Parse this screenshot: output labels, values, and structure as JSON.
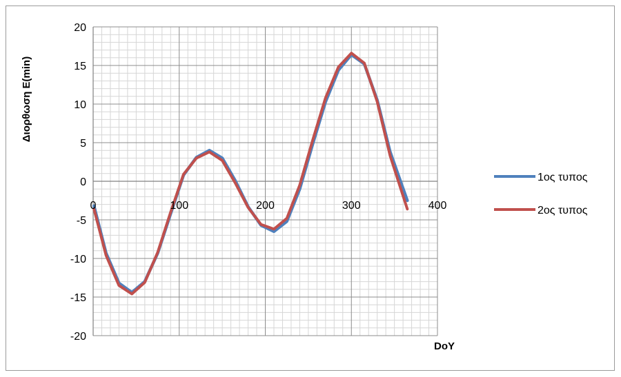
{
  "chart_data": {
    "type": "line",
    "title": "",
    "xlabel": "DoY",
    "ylabel": "Διορθωση Ε(min)",
    "xlim": [
      0,
      400
    ],
    "ylim": [
      -20,
      20
    ],
    "xticks": [
      0,
      100,
      200,
      300,
      400
    ],
    "yticks": [
      20,
      15,
      10,
      5,
      0,
      -5,
      -10,
      -15,
      -20
    ],
    "grid": true,
    "legend": "right",
    "series": [
      {
        "name": "1ος τυπος",
        "color": "#4f81bd",
        "x": [
          1,
          15,
          30,
          45,
          60,
          75,
          90,
          105,
          120,
          135,
          150,
          165,
          180,
          195,
          210,
          225,
          240,
          255,
          270,
          285,
          300,
          315,
          330,
          345,
          365
        ],
        "values": [
          -3.2,
          -9.3,
          -13.2,
          -14.4,
          -13.0,
          -9.3,
          -4.2,
          0.8,
          3.1,
          4.0,
          3.0,
          0.1,
          -3.3,
          -5.7,
          -6.5,
          -5.2,
          -1.0,
          4.8,
          10.3,
          14.4,
          16.4,
          15.2,
          10.5,
          3.8,
          -2.5
        ]
      },
      {
        "name": "2ος τυπος",
        "color": "#c0504d",
        "x": [
          1,
          15,
          30,
          45,
          60,
          75,
          90,
          105,
          120,
          135,
          150,
          165,
          180,
          195,
          210,
          225,
          240,
          255,
          270,
          285,
          300,
          315,
          330,
          345,
          365
        ],
        "values": [
          -3.6,
          -9.6,
          -13.5,
          -14.6,
          -13.1,
          -9.2,
          -4.0,
          0.9,
          3.0,
          3.8,
          2.7,
          -0.2,
          -3.4,
          -5.6,
          -6.2,
          -4.8,
          -0.5,
          5.3,
          10.8,
          14.8,
          16.6,
          15.3,
          10.3,
          3.3,
          -3.6
        ]
      }
    ]
  }
}
